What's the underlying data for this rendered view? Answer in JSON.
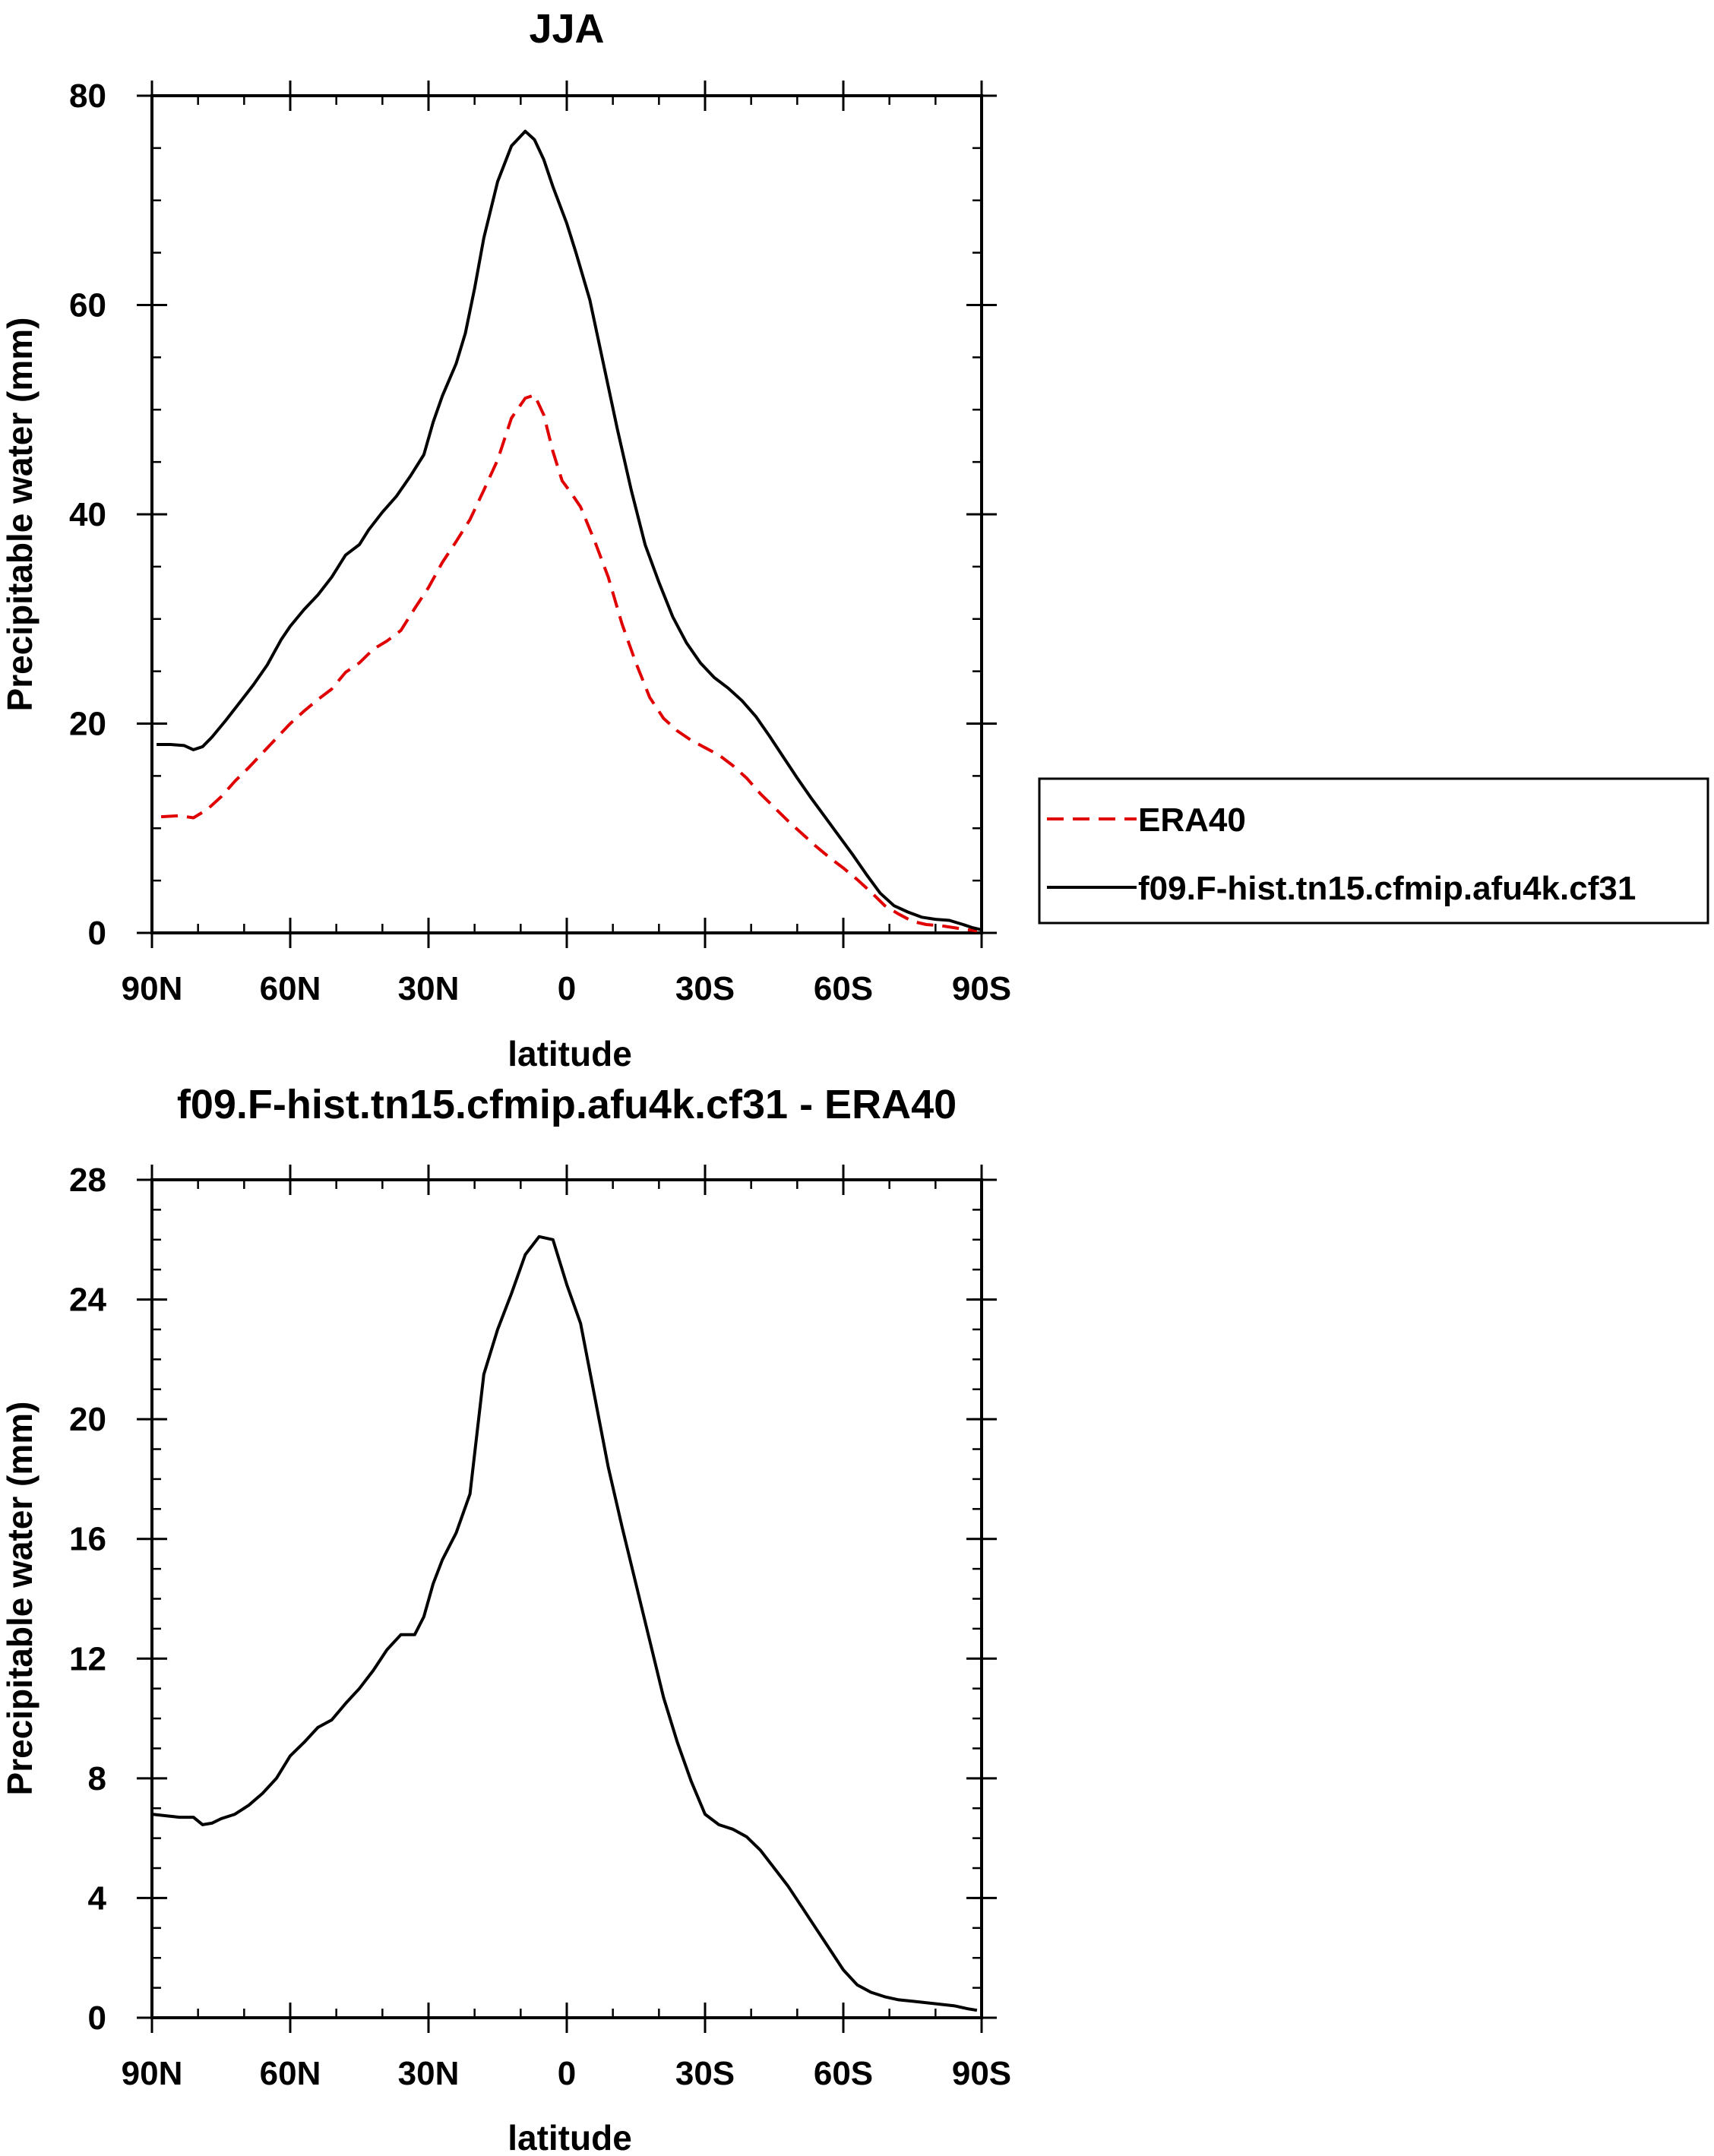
{
  "chart_data": [
    {
      "type": "line",
      "title": "JJA",
      "xlabel": "latitude",
      "ylabel": "Precipitable water (mm)",
      "xlim": [
        90,
        -90
      ],
      "ylim": [
        0,
        80
      ],
      "x_tick_values": [
        90,
        60,
        30,
        0,
        -30,
        -60,
        -90
      ],
      "x_tick_labels": [
        "90N",
        "60N",
        "30N",
        "0",
        "30S",
        "60S",
        "90S"
      ],
      "y_tick_values": [
        0,
        20,
        40,
        60,
        80
      ],
      "y_tick_labels": [
        "0",
        "20",
        "40",
        "60",
        "80"
      ],
      "legend_position": "right",
      "series": [
        {
          "name": "ERA40",
          "color": "#e00000",
          "dash": "dashed",
          "x": [
            88,
            84,
            81,
            78,
            75,
            72,
            69,
            66,
            63,
            60,
            57,
            54,
            51,
            48,
            45,
            42,
            39,
            36,
            33,
            30,
            27,
            24,
            21,
            18,
            15,
            12,
            9,
            7,
            5,
            3,
            1,
            -1,
            -3,
            -6,
            -9,
            -12,
            -15,
            -18,
            -21,
            -24,
            -27,
            -30,
            -33,
            -36,
            -39,
            -42,
            -45,
            -48,
            -51,
            -54,
            -57,
            -60,
            -63,
            -66,
            -69,
            -72,
            -75,
            -78,
            -81,
            -84,
            -87,
            -89
          ],
          "y": [
            11.1,
            11.2,
            11.0,
            11.8,
            13.0,
            14.5,
            15.8,
            17.2,
            18.6,
            20.0,
            21.2,
            22.3,
            23.3,
            24.9,
            25.8,
            27.1,
            27.9,
            28.9,
            31.0,
            33.0,
            35.4,
            37.4,
            39.5,
            42.3,
            45.2,
            49.2,
            51.1,
            51.4,
            49.5,
            46.0,
            43.2,
            42.0,
            40.7,
            37.5,
            34.0,
            29.5,
            25.8,
            22.5,
            20.5,
            19.3,
            18.4,
            17.7,
            17.0,
            16.0,
            14.8,
            13.3,
            12.0,
            10.7,
            9.5,
            8.3,
            7.2,
            6.2,
            5.1,
            3.9,
            2.6,
            1.8,
            1.1,
            0.8,
            0.7,
            0.5,
            0.3,
            0.2
          ]
        },
        {
          "name": "f09.F-hist.tn15.cfmip.afu4k.cf31",
          "color": "#000000",
          "dash": "solid",
          "x": [
            89,
            86,
            83,
            81,
            79,
            77,
            74,
            71,
            68,
            65,
            62,
            60,
            57,
            54,
            51,
            48,
            45,
            43,
            40,
            37,
            34,
            31,
            29,
            27,
            24,
            22,
            20,
            18,
            15,
            12,
            9,
            7,
            5,
            3,
            0,
            -2,
            -5,
            -8,
            -11,
            -14,
            -17,
            -20,
            -23,
            -26,
            -29,
            -32,
            -35,
            -38,
            -41,
            -44,
            -47,
            -50,
            -53,
            -56,
            -59,
            -62,
            -65,
            -68,
            -71,
            -74,
            -77,
            -80,
            -83,
            -86,
            -88,
            -90
          ],
          "y": [
            18.0,
            18.0,
            17.9,
            17.5,
            17.8,
            18.7,
            20.3,
            22.0,
            23.7,
            25.6,
            28.0,
            29.3,
            30.9,
            32.3,
            34.0,
            36.1,
            37.1,
            38.5,
            40.2,
            41.7,
            43.6,
            45.7,
            48.8,
            51.3,
            54.4,
            57.3,
            61.6,
            66.4,
            71.8,
            75.2,
            76.6,
            75.8,
            73.9,
            71.3,
            67.8,
            65.0,
            60.5,
            54.3,
            48.1,
            42.3,
            37.1,
            33.5,
            30.2,
            27.7,
            25.8,
            24.4,
            23.4,
            22.2,
            20.7,
            18.8,
            16.8,
            14.8,
            12.9,
            11.1,
            9.3,
            7.5,
            5.6,
            3.8,
            2.6,
            2.0,
            1.5,
            1.3,
            1.2,
            0.8,
            0.5,
            0.3
          ]
        }
      ]
    },
    {
      "type": "line",
      "title": "f09.F-hist.tn15.cfmip.afu4k.cf31 - ERA40",
      "xlabel": "latitude",
      "ylabel": "Precipitable water (mm)",
      "xlim": [
        90,
        -90
      ],
      "ylim": [
        0,
        28
      ],
      "x_tick_values": [
        90,
        60,
        30,
        0,
        -30,
        -60,
        -90
      ],
      "x_tick_labels": [
        "90N",
        "60N",
        "30N",
        "0",
        "30S",
        "60S",
        "90S"
      ],
      "y_tick_values": [
        0,
        4,
        8,
        12,
        16,
        20,
        24,
        28
      ],
      "y_tick_labels": [
        "0",
        "4",
        "8",
        "12",
        "16",
        "20",
        "24",
        "28"
      ],
      "series": [
        {
          "name": "f09.F-hist.tn15.cfmip.afu4k.cf31 - ERA40",
          "color": "#000000",
          "dash": "solid",
          "x": [
            90,
            87,
            84,
            81,
            79,
            77,
            75,
            72,
            69,
            66,
            63,
            60,
            57,
            54,
            51,
            48,
            45,
            42,
            39,
            36,
            33,
            31,
            29,
            27,
            24,
            21,
            18,
            15,
            12,
            9,
            6,
            3,
            0,
            -3,
            -6,
            -9,
            -12,
            -15,
            -18,
            -21,
            -24,
            -27,
            -30,
            -33,
            -36,
            -39,
            -42,
            -45,
            -48,
            -51,
            -54,
            -57,
            -60,
            -63,
            -66,
            -69,
            -72,
            -75,
            -78,
            -81,
            -84,
            -87,
            -89
          ],
          "y": [
            6.8,
            6.75,
            6.7,
            6.7,
            6.45,
            6.5,
            6.65,
            6.8,
            7.1,
            7.5,
            8.0,
            8.75,
            9.2,
            9.7,
            9.95,
            10.5,
            11.0,
            11.6,
            12.3,
            12.8,
            12.8,
            13.4,
            14.5,
            15.3,
            16.2,
            17.5,
            21.5,
            23.0,
            24.2,
            25.5,
            26.1,
            26.0,
            24.5,
            23.2,
            20.8,
            18.4,
            16.4,
            14.5,
            12.6,
            10.7,
            9.2,
            7.9,
            6.8,
            6.45,
            6.3,
            6.05,
            5.6,
            5.0,
            4.4,
            3.7,
            3.0,
            2.3,
            1.6,
            1.1,
            0.85,
            0.7,
            0.6,
            0.55,
            0.5,
            0.45,
            0.4,
            0.3,
            0.25
          ]
        }
      ]
    }
  ]
}
